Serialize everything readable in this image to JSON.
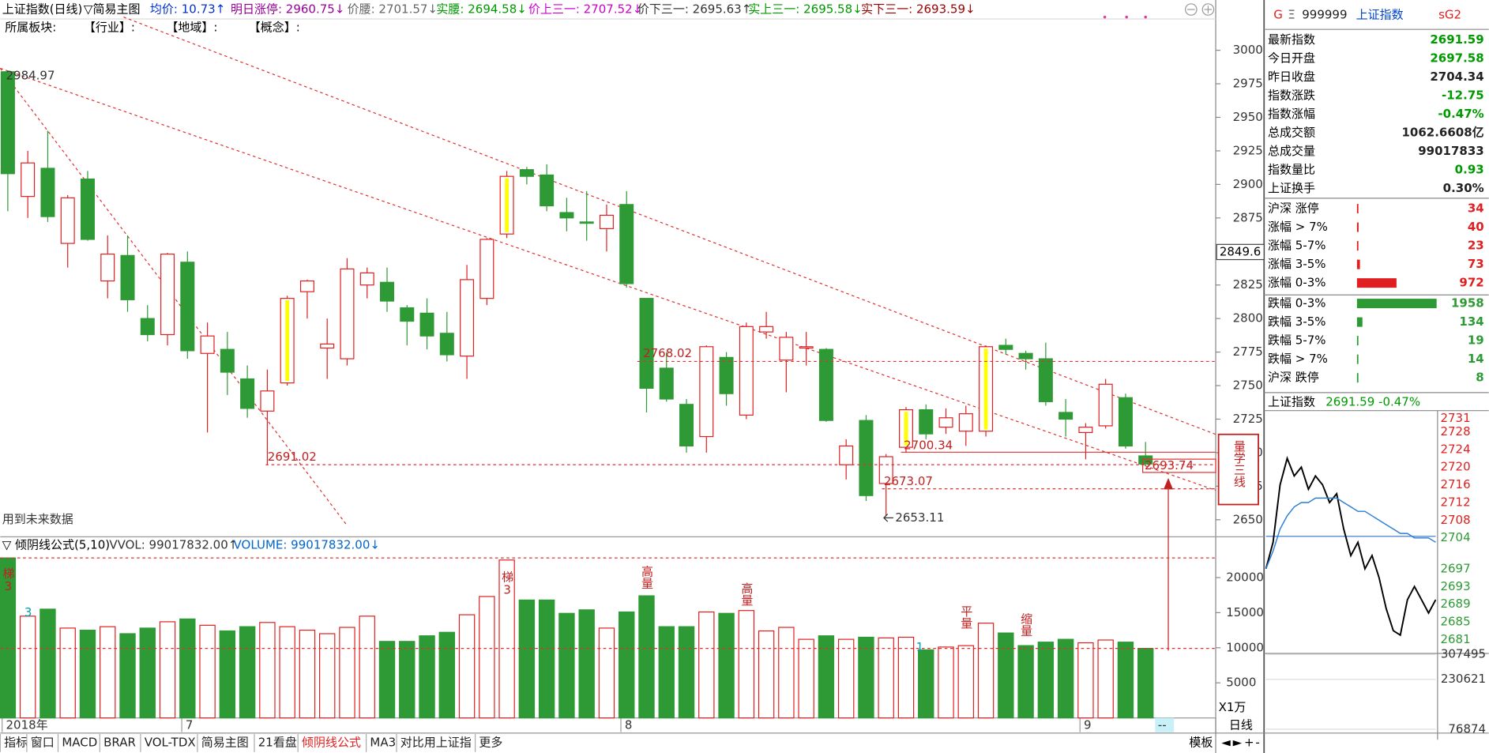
{
  "header": {
    "title": "上证指数(日线)",
    "template": "▽简易主图",
    "indicators": [
      "均价: 10.73↑",
      "明日涨停: 2960.75↓",
      "价腰: 2701.57↓",
      "实腰: 2694.58↓",
      "价上三一: 2707.52↓",
      "价下三一: 2695.63↑",
      "实上三一: 2695.58↓",
      "实下三一: 2693.59↓"
    ],
    "sectors": [
      "所属板块:",
      "【行业】:",
      "【地域】:",
      "【概念】:"
    ]
  },
  "chart_data": [
    {
      "type": "candlestick",
      "categories": [
        "2018年",
        null,
        null,
        null,
        null,
        null,
        null,
        null,
        null,
        "7",
        null,
        null,
        null,
        null,
        null,
        null,
        null,
        null,
        null,
        null,
        null,
        null,
        null,
        null,
        null,
        null,
        null,
        null,
        null,
        null,
        null,
        "8",
        null,
        null,
        null,
        null,
        null,
        null,
        null,
        null,
        null,
        null,
        null,
        null,
        null,
        null,
        null,
        null,
        null,
        null,
        null,
        null,
        null,
        null,
        "9",
        null,
        null,
        null
      ],
      "open": [
        2984,
        2891,
        2912,
        2856,
        2904,
        2828,
        2847,
        2800,
        2788,
        2842,
        2774,
        2777,
        2755,
        2731,
        2752,
        2820,
        2778,
        2770,
        2825,
        2827,
        2808,
        2804,
        2789,
        2772,
        2815,
        2863,
        2911,
        2907,
        2879,
        2872,
        2867,
        2885,
        2815,
        2763,
        2736,
        2712,
        2771,
        2728,
        2790,
        2769,
        2778,
        2777,
        2691,
        2724,
        2677,
        2704,
        2732,
        2719,
        2716,
        2716,
        2780,
        2774,
        2770,
        2730,
        2715,
        2720,
        2741,
        2697.58
      ],
      "high": [
        2984.97,
        2925,
        2940,
        2892,
        2910,
        2862,
        2862,
        2810,
        2849,
        2850,
        2797,
        2790,
        2765,
        2762,
        2817,
        2829,
        2800,
        2845,
        2838,
        2838,
        2810,
        2815,
        2805,
        2840,
        2860,
        2910,
        2913,
        2915,
        2890,
        2895,
        2885,
        2895,
        2815,
        2775,
        2740,
        2780,
        2775,
        2797,
        2805,
        2790,
        2790,
        2778,
        2710,
        2728,
        2699,
        2734,
        2736,
        2733,
        2735,
        2780,
        2785,
        2776,
        2782,
        2740,
        2722,
        2755,
        2744,
        2708
      ],
      "low": [
        2880,
        2875,
        2872,
        2838,
        2858,
        2815,
        2805,
        2783,
        2780,
        2770,
        2715,
        2743,
        2726,
        2691.02,
        2750,
        2800,
        2755,
        2765,
        2815,
        2805,
        2780,
        2777,
        2768,
        2755,
        2810,
        2860,
        2900,
        2880,
        2865,
        2858,
        2850,
        2823,
        2730,
        2738,
        2700,
        2700,
        2735,
        2725,
        2785,
        2745,
        2765,
        2723,
        2680,
        2664,
        2653.11,
        2700,
        2710,
        2714,
        2705,
        2712,
        2773,
        2762,
        2735,
        2712,
        2695,
        2718,
        2703,
        2690
      ],
      "close": [
        2908,
        2916,
        2876,
        2890,
        2859,
        2848,
        2814,
        2788,
        2848,
        2776,
        2787,
        2760,
        2733,
        2746,
        2815,
        2828,
        2781,
        2837,
        2834,
        2813,
        2798,
        2787,
        2773,
        2829,
        2859,
        2906,
        2906,
        2884,
        2875,
        2871,
        2877,
        2826,
        2748,
        2740,
        2705,
        2779,
        2744,
        2794,
        2794,
        2786,
        2779,
        2724,
        2705,
        2668,
        2697,
        2732,
        2714,
        2726,
        2729,
        2779,
        2777,
        2770,
        2738,
        2725,
        2719,
        2751,
        2705,
        2691.59
      ],
      "ylim": [
        2638,
        3010.6
      ],
      "yticks": [
        2650,
        2675,
        2700,
        2725,
        2750,
        2775,
        2800,
        2825,
        2850,
        2875,
        2900,
        2925,
        2950,
        2975,
        3000
      ],
      "axis_marker": 2849.6,
      "up_color": "#e02020",
      "down_color": "#2e9a35",
      "highlight_color": "#ffff00",
      "highlight_indices": [
        14,
        25,
        45,
        49
      ],
      "price_labels": [
        2984.97,
        2691.02,
        2768.02,
        2700.34,
        2673.07,
        2653.11,
        2693.74
      ],
      "note": "用到未来数据",
      "overlay_title": "量学三线"
    },
    {
      "type": "bar",
      "title": "▽ 倾阴线公式(5,10)",
      "legend": [
        "VVOL: 99017832.00↑",
        "VOLUME: 99017832.00↓"
      ],
      "values": [
        22800,
        14500,
        15500,
        12800,
        12500,
        13000,
        12000,
        12800,
        13700,
        14100,
        13200,
        12400,
        13000,
        13600,
        13000,
        12500,
        12000,
        12900,
        14500,
        10900,
        10900,
        11700,
        12200,
        14700,
        17300,
        22500,
        16800,
        16800,
        14900,
        15400,
        12800,
        15100,
        17400,
        13000,
        13000,
        15100,
        14900,
        15300,
        12400,
        12900,
        11200,
        11700,
        11200,
        11500,
        11400,
        11500,
        9700,
        10100,
        10300,
        13500,
        12100,
        10300,
        10800,
        11200,
        10700,
        11100,
        10800,
        9902
      ],
      "ylim": [
        0,
        23650
      ],
      "yticks": [
        5000,
        10000,
        15000,
        20000
      ],
      "unit_label": "X1万",
      "tags": [
        "梯3",
        "3",
        "梯3",
        "高量",
        "高量",
        "1",
        "平量",
        "缩量"
      ]
    },
    {
      "type": "line",
      "title": "上证指数",
      "subtitle": "2691.59 -0.47%",
      "baseline": 2704.34,
      "series": [
        {
          "color": "#000000",
          "values": [
            2697,
            2703,
            2716,
            2722,
            2718,
            2720,
            2715,
            2718,
            2716,
            2712,
            2714,
            2706,
            2700,
            2703,
            2697,
            2700,
            2695,
            2688,
            2683,
            2682,
            2690,
            2693,
            2690,
            2687,
            2690
          ]
        },
        {
          "color": "#2a7fd4",
          "values": [
            2697,
            2701,
            2706,
            2709,
            2711,
            2712,
            2712,
            2713,
            2713,
            2713,
            2713,
            2712,
            2711,
            2710,
            2710,
            2709,
            2708,
            2707,
            2706,
            2705,
            2705,
            2704,
            2704,
            2704,
            2703
          ]
        }
      ],
      "ylim": [
        2677,
        2733
      ],
      "yticks": [
        2681,
        2685,
        2689,
        2693,
        2697,
        2704,
        2708,
        2712,
        2716,
        2720,
        2724,
        2728,
        2731
      ],
      "y2lim": [
        44330,
        307495
      ],
      "y2ticks": [
        76874,
        230621,
        307495
      ]
    }
  ],
  "quote": {
    "title": [
      "G",
      "Ξ",
      "999999",
      "上证指数",
      "sG2"
    ],
    "rows": [
      [
        "最新指数",
        "2691.59"
      ],
      [
        "今日开盘",
        "2697.58"
      ],
      [
        "昨日收盘",
        "2704.34"
      ],
      [
        "指数涨跌",
        "-12.75"
      ],
      [
        "指数涨幅",
        "-0.47%"
      ],
      [
        "总成交额",
        "1062.6608亿"
      ],
      [
        "总成交量",
        "99017833"
      ],
      [
        "指数量比",
        "0.93"
      ],
      [
        "上证换手",
        "0.30%"
      ]
    ]
  },
  "breadth": {
    "rows": [
      {
        "label": "沪深 涨停",
        "value": 34
      },
      {
        "label": "涨幅 > 7%",
        "value": 40
      },
      {
        "label": "涨幅 5-7%",
        "value": 23
      },
      {
        "label": "涨幅 3-5%",
        "value": 73
      },
      {
        "label": "涨幅 0-3%",
        "value": 972
      },
      {
        "label": "跌幅 0-3%",
        "value": 1958
      },
      {
        "label": "跌幅 3-5%",
        "value": 134
      },
      {
        "label": "跌幅 5-7%",
        "value": 19
      },
      {
        "label": "跌幅 > 7%",
        "value": 14
      },
      {
        "label": "沪深 跌停",
        "value": 8
      }
    ]
  },
  "footer": {
    "tabs": [
      "指标",
      "窗口",
      "MACD",
      "BRAR",
      "VOL-TDX",
      "简易主图",
      "21看盘",
      "倾阴线公式",
      "MA3",
      "对比用上证指",
      "更多"
    ],
    "active_tab": 7,
    "status": "--",
    "template_button": "模板",
    "period": "日线",
    "controls": [
      "◄",
      "►",
      "+",
      "-"
    ]
  }
}
